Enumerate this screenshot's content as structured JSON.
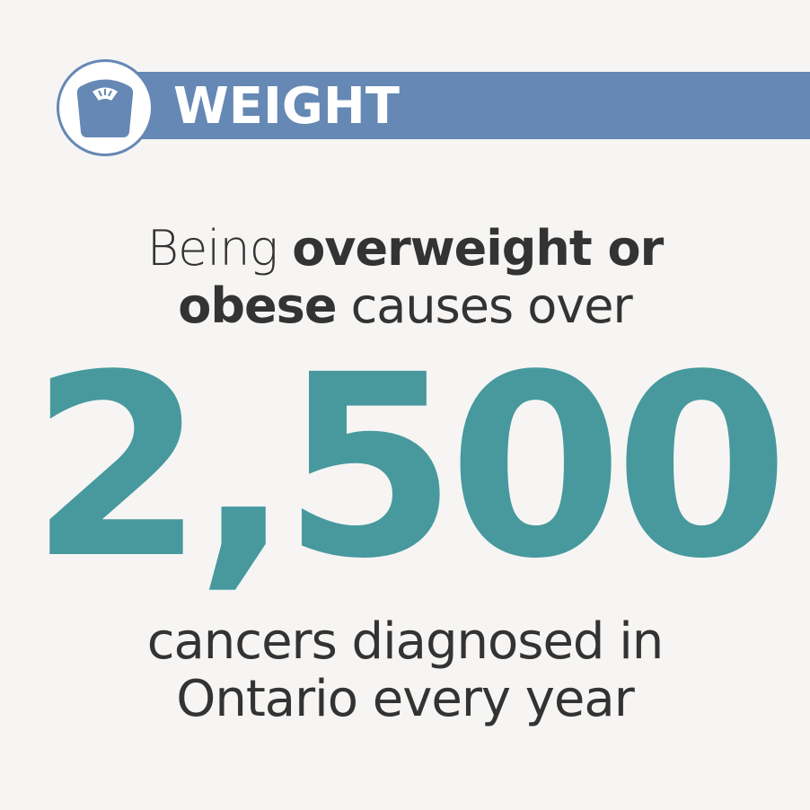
{
  "header": {
    "title": "WEIGHT",
    "icon": "bathroom-scale-icon"
  },
  "statement": {
    "line1_prefix": "Being ",
    "line1_bold": "overweight or",
    "line2_bold": "obese",
    "line2_suffix": " causes over",
    "number": "2,500",
    "line3": "cancers diagnosed in",
    "line4": "Ontario every year"
  },
  "colors": {
    "banner": "#6688b4",
    "accent": "#47999e",
    "text": "#333333",
    "background": "#f6f5f3"
  }
}
